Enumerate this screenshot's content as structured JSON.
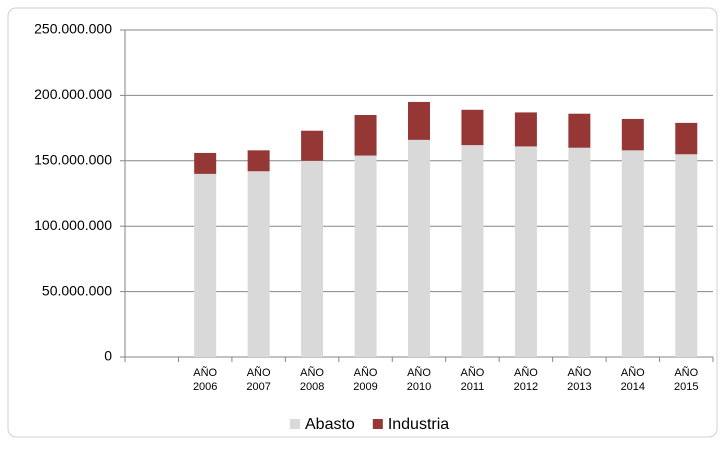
{
  "chart_data": {
    "type": "stacked-bar",
    "categories": [
      null,
      "AÑO 2006",
      "AÑO 2007",
      "AÑO 2008",
      "AÑO 2009",
      "AÑO 2010",
      "AÑO 2011",
      "AÑO 2012",
      "AÑO 2013",
      "AÑO 2014",
      "AÑO 2015"
    ],
    "series": [
      {
        "name": "Abasto",
        "color": "#d9d9d9",
        "values": [
          null,
          140000000,
          142000000,
          150000000,
          154000000,
          166000000,
          162000000,
          161000000,
          160000000,
          158000000,
          155000000
        ]
      },
      {
        "name": "Industria",
        "color": "#953735",
        "values": [
          null,
          16000000,
          16000000,
          23000000,
          31000000,
          29000000,
          27000000,
          26000000,
          26000000,
          24000000,
          24000000
        ]
      }
    ],
    "ylim": [
      0,
      250000000
    ],
    "yticks": [
      0,
      {
        "value": 50000000,
        "label": "50.000.000"
      },
      {
        "value": 100000000,
        "label": "100.000.000"
      },
      {
        "value": 150000000,
        "label": "150.000.000"
      },
      {
        "value": 200000000,
        "label": "200.000.000"
      },
      {
        "value": 250000000,
        "label": "250.000.000"
      }
    ],
    "grid": true,
    "legend": "bottom"
  }
}
